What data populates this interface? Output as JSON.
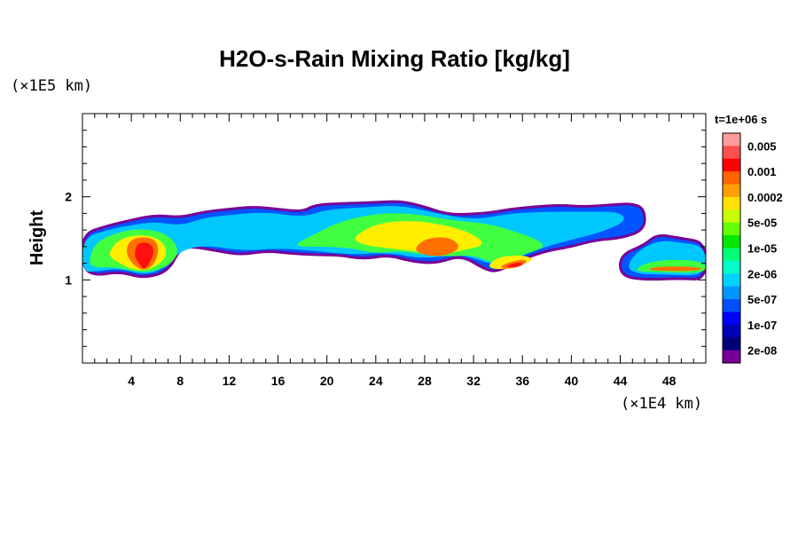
{
  "chart_data": {
    "type": "heatmap",
    "title": "H2O-s-Rain Mixing Ratio [kg/kg]",
    "ylabel": "Height",
    "y_unit": "(×1E5 km)",
    "x_unit": "(×1E4 km)",
    "time_label": "t=1e+06 s",
    "xlim": [
      0,
      51
    ],
    "ylim": [
      0,
      3
    ],
    "x_ticks": [
      4,
      8,
      12,
      16,
      20,
      24,
      28,
      32,
      36,
      40,
      44,
      48
    ],
    "y_ticks": [
      1,
      2
    ],
    "colorbar": {
      "labels": [
        "0.005",
        "0.001",
        "0.0002",
        "5e-05",
        "1e-05",
        "2e-06",
        "5e-07",
        "1e-07",
        "2e-08"
      ],
      "colors_top_to_bottom": [
        "#ff9c9c",
        "#ff5050",
        "#ff0000",
        "#ff6400",
        "#ffa000",
        "#ffe000",
        "#c8ff00",
        "#64ff00",
        "#00e600",
        "#00ff78",
        "#00ffc8",
        "#00d2ff",
        "#0096ff",
        "#0050ff",
        "#0000ff",
        "#0000b4",
        "#000078",
        "#780096"
      ]
    },
    "series": [
      {
        "name": "",
        "level": 0,
        "polygon": [
          [
            0,
            1.15
          ],
          [
            0,
            1.55
          ],
          [
            2,
            1.65
          ],
          [
            4,
            1.72
          ],
          [
            6,
            1.78
          ],
          [
            8,
            1.75
          ],
          [
            10,
            1.82
          ],
          [
            12,
            1.85
          ],
          [
            14,
            1.88
          ],
          [
            16,
            1.85
          ],
          [
            18,
            1.82
          ],
          [
            19,
            1.9
          ],
          [
            21,
            1.92
          ],
          [
            24,
            1.93
          ],
          [
            26,
            1.95
          ],
          [
            28,
            1.88
          ],
          [
            30,
            1.78
          ],
          [
            33,
            1.8
          ],
          [
            35,
            1.85
          ],
          [
            37,
            1.88
          ],
          [
            39,
            1.9
          ],
          [
            41,
            1.88
          ],
          [
            43,
            1.9
          ],
          [
            45,
            1.92
          ],
          [
            46,
            1.85
          ],
          [
            46,
            1.6
          ],
          [
            44,
            1.5
          ],
          [
            42,
            1.48
          ],
          [
            40,
            1.4
          ],
          [
            38,
            1.35
          ],
          [
            36,
            1.25
          ],
          [
            34,
            1.1
          ],
          [
            33,
            1.12
          ],
          [
            31,
            1.3
          ],
          [
            29,
            1.2
          ],
          [
            27,
            1.22
          ],
          [
            25,
            1.3
          ],
          [
            23,
            1.25
          ],
          [
            21,
            1.3
          ],
          [
            19,
            1.3
          ],
          [
            17,
            1.32
          ],
          [
            15,
            1.35
          ],
          [
            13,
            1.3
          ],
          [
            11,
            1.35
          ],
          [
            9,
            1.4
          ],
          [
            8,
            1.38
          ],
          [
            7,
            1.1
          ],
          [
            5,
            1.02
          ],
          [
            3,
            1.1
          ],
          [
            1,
            1.05
          ]
        ]
      },
      {
        "name": "",
        "level": 0,
        "polygon": [
          [
            44,
            1.05
          ],
          [
            44,
            1.3
          ],
          [
            46,
            1.42
          ],
          [
            47,
            1.55
          ],
          [
            49,
            1.5
          ],
          [
            51,
            1.45
          ],
          [
            51,
            1.0
          ],
          [
            49,
            1.02
          ],
          [
            46,
            1.0
          ]
        ]
      },
      {
        "name": "",
        "level": 1,
        "polygon": [
          [
            0,
            1.1
          ],
          [
            0,
            1.5
          ],
          [
            2,
            1.6
          ],
          [
            4,
            1.66
          ],
          [
            6,
            1.7
          ],
          [
            8,
            1.65
          ],
          [
            10,
            1.75
          ],
          [
            12,
            1.78
          ],
          [
            15,
            1.82
          ],
          [
            18,
            1.75
          ],
          [
            20,
            1.85
          ],
          [
            23,
            1.87
          ],
          [
            26,
            1.9
          ],
          [
            29,
            1.8
          ],
          [
            32,
            1.72
          ],
          [
            35,
            1.8
          ],
          [
            38,
            1.82
          ],
          [
            41,
            1.82
          ],
          [
            44,
            1.82
          ],
          [
            44.5,
            1.7
          ],
          [
            42,
            1.55
          ],
          [
            39,
            1.45
          ],
          [
            36,
            1.3
          ],
          [
            34,
            1.15
          ],
          [
            31,
            1.32
          ],
          [
            28,
            1.25
          ],
          [
            25,
            1.33
          ],
          [
            22,
            1.3
          ],
          [
            19,
            1.35
          ],
          [
            16,
            1.38
          ],
          [
            13,
            1.35
          ],
          [
            10,
            1.42
          ],
          [
            8,
            1.35
          ],
          [
            6.5,
            1.12
          ],
          [
            5,
            1.06
          ],
          [
            3,
            1.14
          ],
          [
            1,
            1.1
          ]
        ]
      },
      {
        "name": "",
        "level": 1,
        "polygon": [
          [
            44.5,
            1.08
          ],
          [
            45,
            1.3
          ],
          [
            47,
            1.48
          ],
          [
            49,
            1.45
          ],
          [
            51,
            1.4
          ],
          [
            51,
            1.05
          ],
          [
            48,
            1.06
          ]
        ]
      },
      {
        "name": "",
        "level": 2,
        "polygon": [
          [
            0.5,
            1.2
          ],
          [
            1,
            1.45
          ],
          [
            3,
            1.58
          ],
          [
            5,
            1.62
          ],
          [
            7,
            1.55
          ],
          [
            8,
            1.35
          ],
          [
            7,
            1.15
          ],
          [
            5,
            1.08
          ],
          [
            3,
            1.15
          ],
          [
            1,
            1.15
          ]
        ]
      },
      {
        "name": "",
        "level": 2,
        "polygon": [
          [
            17,
            1.4
          ],
          [
            19,
            1.55
          ],
          [
            21,
            1.7
          ],
          [
            24,
            1.8
          ],
          [
            27,
            1.8
          ],
          [
            30,
            1.72
          ],
          [
            33,
            1.68
          ],
          [
            35,
            1.6
          ],
          [
            37,
            1.5
          ],
          [
            38,
            1.4
          ],
          [
            36,
            1.3
          ],
          [
            34,
            1.18
          ],
          [
            32,
            1.3
          ],
          [
            30,
            1.28
          ],
          [
            28,
            1.3
          ],
          [
            26,
            1.35
          ],
          [
            24,
            1.32
          ],
          [
            22,
            1.38
          ],
          [
            20,
            1.4
          ]
        ]
      },
      {
        "name": "",
        "level": 2,
        "polygon": [
          [
            45,
            1.1
          ],
          [
            46,
            1.2
          ],
          [
            48,
            1.25
          ],
          [
            51,
            1.22
          ],
          [
            51,
            1.08
          ],
          [
            48,
            1.09
          ]
        ]
      },
      {
        "name": "",
        "level": 3,
        "polygon": [
          [
            2,
            1.3
          ],
          [
            3,
            1.5
          ],
          [
            5,
            1.55
          ],
          [
            6.5,
            1.48
          ],
          [
            7,
            1.3
          ],
          [
            6,
            1.15
          ],
          [
            4.5,
            1.1
          ],
          [
            3,
            1.2
          ]
        ]
      },
      {
        "name": "",
        "level": 3,
        "polygon": [
          [
            22,
            1.5
          ],
          [
            24,
            1.68
          ],
          [
            27,
            1.72
          ],
          [
            30,
            1.65
          ],
          [
            32,
            1.55
          ],
          [
            33,
            1.42
          ],
          [
            31,
            1.35
          ],
          [
            29,
            1.3
          ],
          [
            27,
            1.35
          ],
          [
            25,
            1.38
          ],
          [
            23,
            1.42
          ]
        ]
      },
      {
        "name": "",
        "level": 3,
        "polygon": [
          [
            33,
            1.15
          ],
          [
            34,
            1.28
          ],
          [
            36,
            1.3
          ],
          [
            37,
            1.25
          ],
          [
            36,
            1.18
          ],
          [
            34.5,
            1.12
          ]
        ]
      },
      {
        "name": "",
        "level": 4,
        "polygon": [
          [
            3.5,
            1.35
          ],
          [
            4,
            1.5
          ],
          [
            5.5,
            1.52
          ],
          [
            6.3,
            1.42
          ],
          [
            6,
            1.2
          ],
          [
            5,
            1.1
          ],
          [
            4,
            1.2
          ]
        ]
      },
      {
        "name": "",
        "level": 4,
        "polygon": [
          [
            27,
            1.35
          ],
          [
            28,
            1.5
          ],
          [
            30,
            1.52
          ],
          [
            31,
            1.4
          ],
          [
            30,
            1.3
          ],
          [
            28.5,
            1.28
          ]
        ]
      },
      {
        "name": "",
        "level": 4,
        "polygon": [
          [
            34,
            1.15
          ],
          [
            35,
            1.22
          ],
          [
            36.5,
            1.25
          ],
          [
            36,
            1.17
          ],
          [
            35,
            1.13
          ]
        ]
      },
      {
        "name": "",
        "level": 4,
        "polygon": [
          [
            46,
            1.12
          ],
          [
            47,
            1.16
          ],
          [
            50,
            1.16
          ],
          [
            51,
            1.13
          ],
          [
            49,
            1.1
          ]
        ]
      },
      {
        "name": "",
        "level": 5,
        "polygon": [
          [
            4.2,
            1.3
          ],
          [
            4.5,
            1.45
          ],
          [
            5.5,
            1.45
          ],
          [
            5.9,
            1.35
          ],
          [
            5.5,
            1.2
          ],
          [
            5,
            1.12
          ],
          [
            4.6,
            1.2
          ]
        ]
      },
      {
        "name": "",
        "level": 5,
        "polygon": [
          [
            34.5,
            1.16
          ],
          [
            35.5,
            1.21
          ],
          [
            36.2,
            1.2
          ],
          [
            35.5,
            1.15
          ]
        ]
      }
    ]
  }
}
